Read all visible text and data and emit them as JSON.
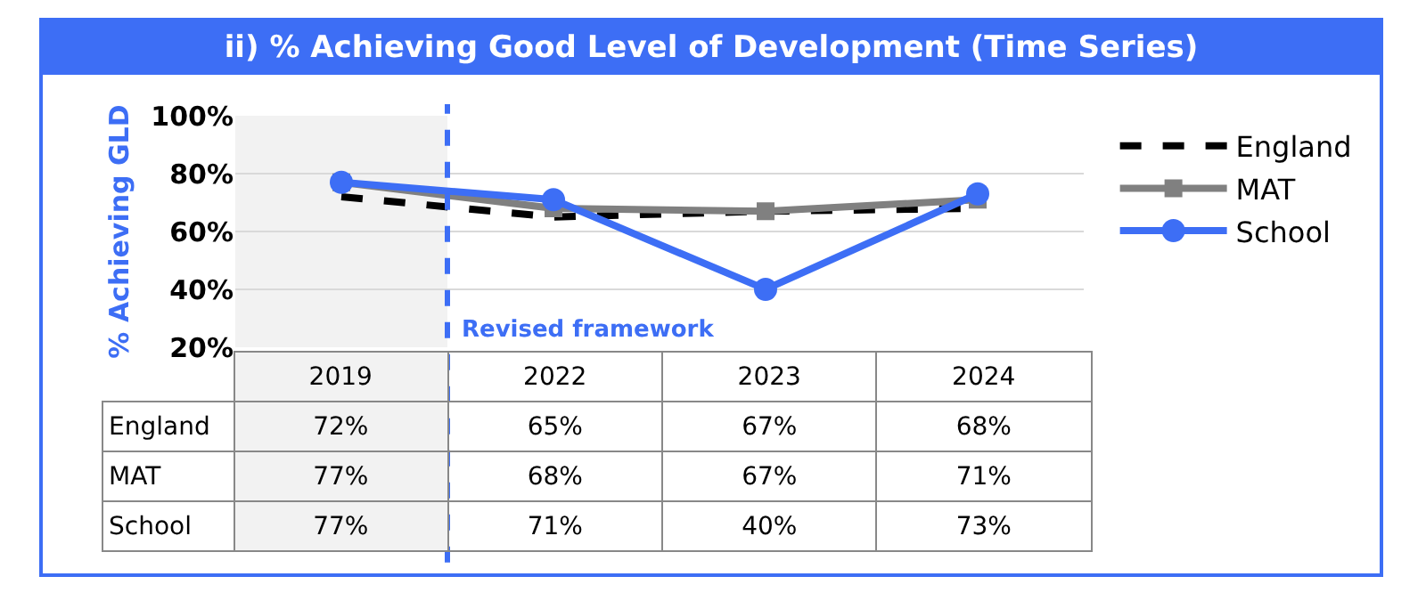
{
  "chart_data": {
    "type": "line",
    "title": "ii) % Achieving Good Level of Development (Time Series)",
    "ylabel": "% Achieving GLD",
    "categories": [
      "2019",
      "2022",
      "2023",
      "2024"
    ],
    "series": [
      {
        "name": "England",
        "color": "#000000",
        "values": [
          72,
          65,
          67,
          68
        ],
        "line_style": "dashed",
        "marker": "none",
        "value_labels": [
          "72%",
          "65%",
          "67%",
          "68%"
        ]
      },
      {
        "name": "MAT",
        "color": "#808080",
        "values": [
          77,
          68,
          67,
          71
        ],
        "line_style": "solid",
        "marker": "square",
        "value_labels": [
          "77%",
          "68%",
          "67%",
          "71%"
        ]
      },
      {
        "name": "School",
        "color": "#3d6ef5",
        "values": [
          77,
          71,
          40,
          73
        ],
        "line_style": "solid",
        "marker": "circle",
        "value_labels": [
          "77%",
          "71%",
          "40%",
          "73%"
        ]
      }
    ],
    "ylim": [
      20,
      100
    ],
    "yticks": [
      {
        "value": 20,
        "label": "20%"
      },
      {
        "value": 40,
        "label": "40%"
      },
      {
        "value": 60,
        "label": "60%"
      },
      {
        "value": 80,
        "label": "80%"
      },
      {
        "value": 100,
        "label": "100%"
      }
    ],
    "bands": [
      {
        "axis": "x",
        "from": "2019",
        "to": "2019",
        "color": "#f2f2f2"
      }
    ],
    "ref_lines": [
      {
        "axis": "x",
        "value": "2022",
        "label": "Revised framework",
        "color": "#3d6ef5",
        "line_style": "dashed"
      }
    ],
    "grid": "y",
    "legend": "right",
    "tick_labels": "y"
  }
}
